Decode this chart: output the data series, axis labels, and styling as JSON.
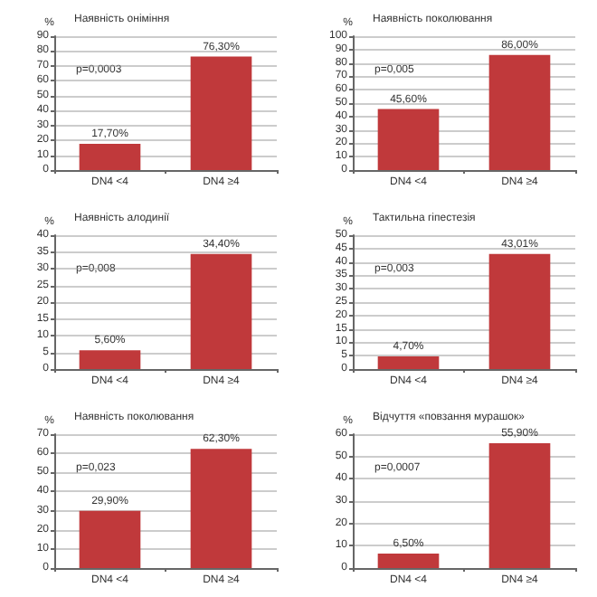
{
  "chart_data": [
    {
      "type": "bar",
      "title": "Наявність оніміння",
      "ylabel": "%",
      "categories": [
        "DN4 <4",
        "DN4 ≥4"
      ],
      "values": [
        17.7,
        76.3
      ],
      "value_labels": [
        "17,70%",
        "76,30%"
      ],
      "color": "#c0393b",
      "ylim": [
        0,
        90
      ],
      "yticks": [
        0,
        10,
        20,
        30,
        40,
        50,
        60,
        70,
        80,
        90
      ],
      "grid": "y",
      "annotations": [
        "p=0,0003"
      ]
    },
    {
      "type": "bar",
      "title": "Наявність поколювання",
      "ylabel": "%",
      "categories": [
        "DN4 <4",
        "DN4 ≥4"
      ],
      "values": [
        45.6,
        86.0
      ],
      "value_labels": [
        "45,60%",
        "86,00%"
      ],
      "color": "#c0393b",
      "ylim": [
        0,
        100
      ],
      "yticks": [
        0,
        10,
        20,
        30,
        40,
        50,
        60,
        70,
        80,
        90,
        100
      ],
      "grid": "y",
      "annotations": [
        "p=0,005"
      ]
    },
    {
      "type": "bar",
      "title": "Наявність алодинії",
      "ylabel": "%",
      "categories": [
        "DN4 <4",
        "DN4 ≥4"
      ],
      "values": [
        5.6,
        34.4
      ],
      "value_labels": [
        "5,60%",
        "34,40%"
      ],
      "color": "#c0393b",
      "ylim": [
        0,
        40
      ],
      "yticks": [
        0,
        5,
        10,
        15,
        20,
        25,
        30,
        35,
        40
      ],
      "grid": "y",
      "annotations": [
        "p=0,008"
      ]
    },
    {
      "type": "bar",
      "title": "Тактильна гіпестезія",
      "ylabel": "%",
      "categories": [
        "DN4 <4",
        "DN4 ≥4"
      ],
      "values": [
        4.7,
        43.01
      ],
      "value_labels": [
        "4,70%",
        "43,01%"
      ],
      "color": "#c0393b",
      "ylim": [
        0,
        50
      ],
      "yticks": [
        0,
        5,
        10,
        15,
        20,
        25,
        30,
        35,
        40,
        45,
        50
      ],
      "grid": "y",
      "annotations": [
        "p=0,003"
      ]
    },
    {
      "type": "bar",
      "title": "Наявність поколювання",
      "ylabel": "%",
      "categories": [
        "DN4 <4",
        "DN4 ≥4"
      ],
      "values": [
        29.9,
        62.3
      ],
      "value_labels": [
        "29,90%",
        "62,30%"
      ],
      "color": "#c0393b",
      "ylim": [
        0,
        70
      ],
      "yticks": [
        0,
        10,
        20,
        30,
        40,
        50,
        60,
        70
      ],
      "grid": "y",
      "annotations": [
        "p=0,023"
      ]
    },
    {
      "type": "bar",
      "title": "Відчуття «повзання мурашок»",
      "ylabel": "%",
      "categories": [
        "DN4 <4",
        "DN4 ≥4"
      ],
      "values": [
        6.5,
        55.9
      ],
      "value_labels": [
        "6,50%",
        "55,90%"
      ],
      "color": "#c0393b",
      "ylim": [
        0,
        60
      ],
      "yticks": [
        0,
        10,
        20,
        30,
        40,
        50,
        60
      ],
      "grid": "y",
      "annotations": [
        "p=0,0007"
      ]
    }
  ]
}
